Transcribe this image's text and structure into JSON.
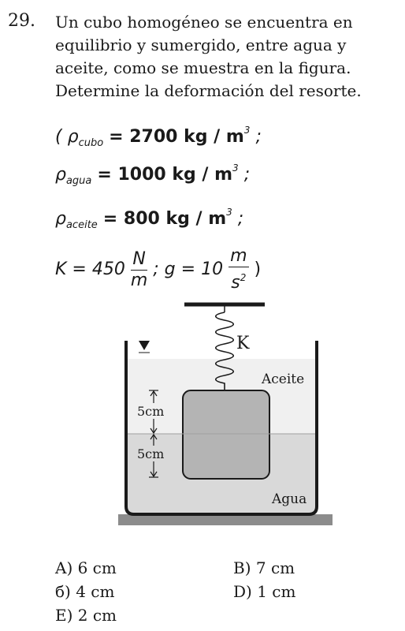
{
  "question": {
    "number": "29.",
    "lines": [
      "Un cubo homogéneo se encuentra en",
      "equilibrio y sumergido, entre agua y",
      "aceite, como se muestra en la figura.",
      "Determine la deformación del resorte."
    ]
  },
  "data": {
    "open_paren": "(",
    "rho": "ρ",
    "cubo_sub": "cubo",
    "cubo_val": "= 2700 kg / m",
    "agua_sub": "agua",
    "agua_val": "= 1000 kg / m",
    "aceite_sub": "aceite",
    "aceite_val": "= 800 kg / m",
    "exp": "3",
    "semi": ";",
    "k_lhs": "K = 450",
    "k_num": "N",
    "k_den": "m",
    "g_text": "; g = 10",
    "g_num": "m",
    "g_den": "s",
    "g_exp": "2",
    "close_paren": ")"
  },
  "figure": {
    "spring_label": "K",
    "oil_label": "Aceite",
    "water_label": "Agua",
    "dim_top": "5cm",
    "dim_bottom": "5cm",
    "colors": {
      "oil": "#f0f0f0",
      "water": "#d9d9d9",
      "cube": "#b4b4b4",
      "ground": "#8c8c8c",
      "lines": "#1a1a1a"
    }
  },
  "options": {
    "a": "A) 6 cm",
    "b": "B) 7 cm",
    "c": "б) 4 cm",
    "d": "D) 1 cm",
    "e": "E) 2 cm"
  }
}
